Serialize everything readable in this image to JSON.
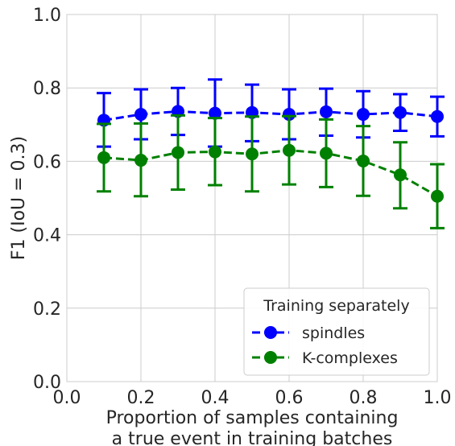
{
  "chart_data": {
    "type": "line",
    "xlabel": [
      "Proportion of samples containing",
      "a true event in training batches"
    ],
    "ylabel": "F1 (IoU = 0.3)",
    "xlim": [
      0.0,
      1.0
    ],
    "ylim": [
      0.0,
      1.0
    ],
    "xticks": [
      "0.0",
      "0.2",
      "0.4",
      "0.6",
      "0.8",
      "1.0"
    ],
    "yticks": [
      "0.0",
      "0.2",
      "0.4",
      "0.6",
      "0.8",
      "1.0"
    ],
    "grid": true,
    "legend": {
      "title": "Training separately",
      "placement": "lower-right"
    },
    "x": [
      0.1,
      0.2,
      0.3,
      0.4,
      0.5,
      0.6,
      0.7,
      0.8,
      0.9,
      1.0
    ],
    "series": [
      {
        "name": "spindles",
        "color": "#0000ff",
        "values": [
          0.712,
          0.728,
          0.736,
          0.731,
          0.733,
          0.728,
          0.735,
          0.728,
          0.733,
          0.722
        ],
        "error_low": [
          0.64,
          0.66,
          0.672,
          0.64,
          0.655,
          0.66,
          0.67,
          0.665,
          0.683,
          0.668
        ],
        "error_high": [
          0.786,
          0.796,
          0.8,
          0.823,
          0.809,
          0.796,
          0.798,
          0.791,
          0.783,
          0.776
        ]
      },
      {
        "name": "K-complexes",
        "color": "#008000",
        "values": [
          0.61,
          0.603,
          0.624,
          0.626,
          0.62,
          0.63,
          0.622,
          0.601,
          0.563,
          0.505
        ],
        "error_low": [
          0.518,
          0.505,
          0.523,
          0.535,
          0.518,
          0.537,
          0.53,
          0.506,
          0.472,
          0.418
        ],
        "error_high": [
          0.702,
          0.703,
          0.725,
          0.718,
          0.722,
          0.723,
          0.714,
          0.696,
          0.652,
          0.592
        ]
      }
    ]
  }
}
